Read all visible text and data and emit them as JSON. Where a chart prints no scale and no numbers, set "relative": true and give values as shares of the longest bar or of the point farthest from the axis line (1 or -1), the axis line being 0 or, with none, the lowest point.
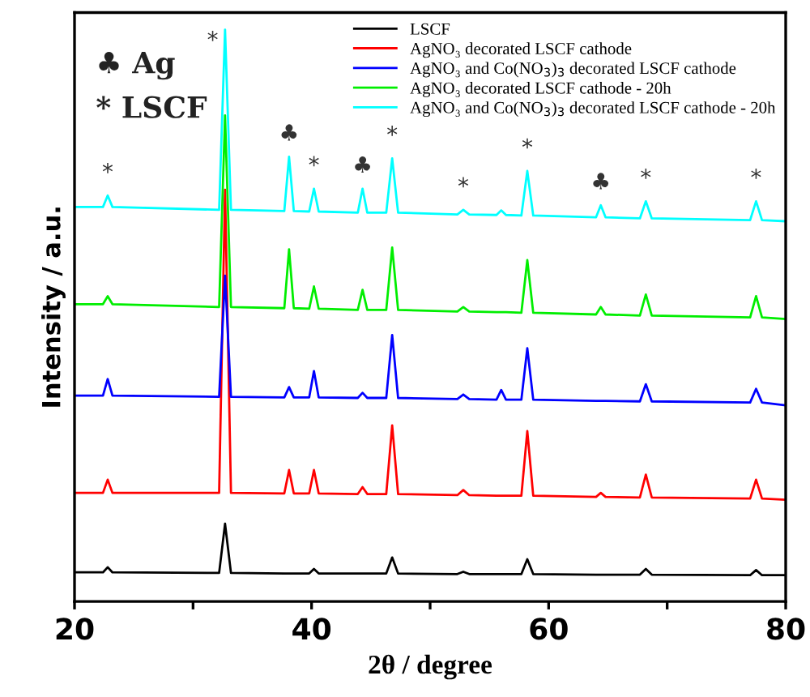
{
  "chart_data": {
    "type": "line",
    "relative": true,
    "xlabel": "2θ / degree",
    "ylabel": "Intensity / a.u.",
    "xlim": [
      20,
      80
    ],
    "xticks": [
      20,
      {
        "value": 30,
        "label": null
      },
      40,
      {
        "value": 50,
        "label": null
      },
      60,
      {
        "value": 70,
        "label": null
      },
      80
    ],
    "x": [
      20,
      22.4,
      22.8,
      23.2,
      32.2,
      32.7,
      33.2,
      37.7,
      38.1,
      38.5,
      39.8,
      40.2,
      40.6,
      43.9,
      44.3,
      44.7,
      46.3,
      46.8,
      47.3,
      52.3,
      52.8,
      53.3,
      55.6,
      56.0,
      56.4,
      57.7,
      58.2,
      58.7,
      64.0,
      64.4,
      64.8,
      67.7,
      68.2,
      68.7,
      77.0,
      77.5,
      78.0,
      80
    ],
    "series": [
      {
        "name": "LSCF",
        "color": "#000000",
        "values": [
          0.051,
          0.051,
          0.06,
          0.051,
          0.05,
          0.136,
          0.05,
          0.049,
          0.049,
          0.049,
          0.049,
          0.057,
          0.049,
          0.049,
          0.049,
          0.049,
          0.049,
          0.077,
          0.049,
          0.048,
          0.052,
          0.048,
          0.048,
          0.048,
          0.048,
          0.048,
          0.074,
          0.048,
          0.047,
          0.047,
          0.047,
          0.047,
          0.057,
          0.047,
          0.046,
          0.055,
          0.046,
          0.046
        ]
      },
      {
        "name": "AgNO₃ decorated LSCF cathode",
        "color": "#ff0000",
        "values": [
          0.19,
          0.19,
          0.213,
          0.19,
          0.19,
          0.72,
          0.19,
          0.189,
          0.23,
          0.189,
          0.189,
          0.23,
          0.189,
          0.188,
          0.2,
          0.188,
          0.188,
          0.308,
          0.188,
          0.186,
          0.195,
          0.186,
          0.185,
          0.185,
          0.185,
          0.185,
          0.298,
          0.185,
          0.183,
          0.19,
          0.183,
          0.182,
          0.222,
          0.182,
          0.18,
          0.213,
          0.18,
          0.178
        ]
      },
      {
        "name": "AgNO₃ and Co(NO$_{3}$)$_{3}$ decorated LSCF cathode",
        "color": "#0000ff",
        "values": [
          0.36,
          0.36,
          0.389,
          0.36,
          0.358,
          0.57,
          0.358,
          0.357,
          0.375,
          0.357,
          0.357,
          0.403,
          0.357,
          0.356,
          0.365,
          0.356,
          0.356,
          0.466,
          0.356,
          0.354,
          0.362,
          0.354,
          0.353,
          0.37,
          0.353,
          0.353,
          0.443,
          0.353,
          0.351,
          0.351,
          0.351,
          0.35,
          0.38,
          0.35,
          0.348,
          0.372,
          0.348,
          0.343
        ]
      },
      {
        "name": "AgNO₃ decorated LSCF cathode - 20h",
        "color": "#00ee00",
        "values": [
          0.52,
          0.52,
          0.534,
          0.52,
          0.515,
          0.85,
          0.515,
          0.513,
          0.616,
          0.513,
          0.512,
          0.551,
          0.512,
          0.51,
          0.545,
          0.51,
          0.51,
          0.619,
          0.51,
          0.507,
          0.515,
          0.507,
          0.506,
          0.506,
          0.506,
          0.505,
          0.597,
          0.505,
          0.502,
          0.515,
          0.502,
          0.5,
          0.537,
          0.5,
          0.497,
          0.534,
          0.497,
          0.494
        ]
      },
      {
        "name": "AgNO₃ and Co(NO$_{3}$)$_{3}$ decorated LSCF cathode - 20h",
        "color": "#00ffff",
        "values": [
          0.69,
          0.69,
          0.71,
          0.69,
          0.685,
          1.0,
          0.685,
          0.683,
          0.778,
          0.683,
          0.682,
          0.722,
          0.682,
          0.68,
          0.722,
          0.68,
          0.68,
          0.775,
          0.68,
          0.677,
          0.685,
          0.677,
          0.676,
          0.684,
          0.676,
          0.675,
          0.753,
          0.675,
          0.672,
          0.693,
          0.672,
          0.67,
          0.7,
          0.67,
          0.667,
          0.7,
          0.667,
          0.665
        ]
      }
    ],
    "legend": "top right",
    "grid": false,
    "marker": "none",
    "line_style": "solid",
    "annotations": [
      "♣ Ag",
      "* LSCF",
      {
        "text": "*",
        "x": 22.8,
        "y": 0.71
      },
      {
        "text": "*",
        "x": 32.7,
        "y": 1.0
      },
      {
        "text": "♣",
        "x": 38.1,
        "y": 0.778
      },
      {
        "text": "*",
        "x": 40.2,
        "y": 0.722
      },
      {
        "text": "♣",
        "x": 44.3,
        "y": 0.722
      },
      {
        "text": "*",
        "x": 46.8,
        "y": 0.775
      },
      {
        "text": "*",
        "x": 52.8,
        "y": 0.685
      },
      {
        "text": "*",
        "x": 58.2,
        "y": 0.753
      },
      {
        "text": "♣",
        "x": 64.4,
        "y": 0.693
      },
      {
        "text": "*",
        "x": 68.2,
        "y": 0.7
      },
      {
        "text": "*",
        "x": 77.5,
        "y": 0.7
      }
    ]
  }
}
